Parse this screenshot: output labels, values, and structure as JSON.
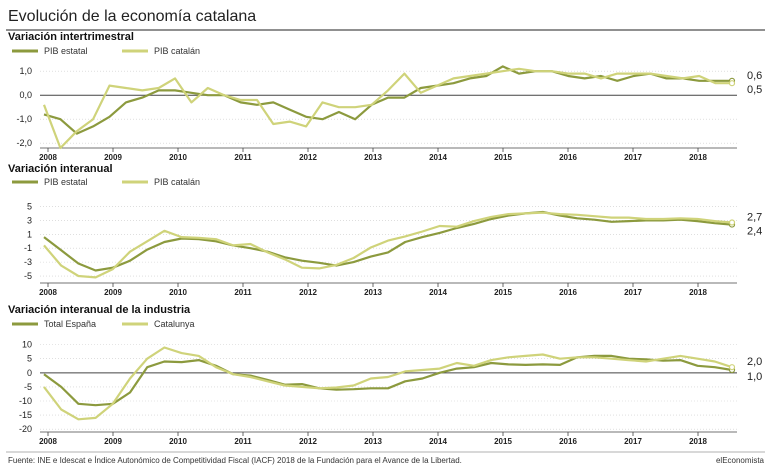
{
  "title": "Evolución de la economía catalana",
  "source": "Fuente: INE e Idescat e Índice Autonómico de Competitividad Fiscal (IACF) 2018 de la Fundación para el Avance de la Libertad.",
  "brand": "elEconomista",
  "colors": {
    "dark": "#8c9a3e",
    "light": "#cfd37a",
    "zero": "#444444",
    "grid": "#cccccc"
  },
  "chart_data": [
    {
      "type": "line",
      "subtitle": "Variación intertrimestral",
      "x_labels": [
        "2008",
        "2009",
        "2010",
        "2011",
        "2012",
        "2013",
        "2014",
        "2015",
        "2016",
        "2017",
        "2018"
      ],
      "ylim": [
        -2.2,
        1.3
      ],
      "y_ticks": [
        1.0,
        0.0,
        -1.0,
        -2.0
      ],
      "y_tick_labels": [
        "1,0",
        "0,0",
        "-1,0",
        "-2,0"
      ],
      "end_labels": [
        "0,6",
        "0,5"
      ],
      "series": [
        {
          "name": "PIB estatal",
          "color": "dark",
          "values": [
            -0.8,
            -1.0,
            -1.6,
            -1.3,
            -0.9,
            -0.3,
            -0.1,
            0.2,
            0.2,
            0.1,
            0.0,
            0.0,
            -0.3,
            -0.4,
            -0.3,
            -0.6,
            -0.9,
            -1.0,
            -0.7,
            -1.0,
            -0.4,
            -0.1,
            -0.1,
            0.3,
            0.4,
            0.5,
            0.7,
            0.8,
            1.2,
            0.9,
            1.0,
            1.0,
            0.8,
            0.7,
            0.8,
            0.6,
            0.8,
            0.9,
            0.7,
            0.7,
            0.6,
            0.6,
            0.6
          ]
        },
        {
          "name": "PIB catalán",
          "color": "light",
          "values": [
            -0.4,
            -2.2,
            -1.5,
            -1.0,
            0.4,
            0.3,
            0.2,
            0.3,
            0.7,
            -0.3,
            0.3,
            0.0,
            -0.2,
            -0.2,
            -1.2,
            -1.1,
            -1.3,
            -0.3,
            -0.5,
            -0.5,
            -0.4,
            0.2,
            0.9,
            0.1,
            0.4,
            0.7,
            0.8,
            0.9,
            1.0,
            1.1,
            1.0,
            1.0,
            0.9,
            0.9,
            0.7,
            0.9,
            0.9,
            0.9,
            0.8,
            0.7,
            0.8,
            0.5,
            0.5
          ]
        }
      ]
    },
    {
      "type": "line",
      "subtitle": "Variación interanual",
      "x_labels": [
        "2008",
        "2009",
        "2010",
        "2011",
        "2012",
        "2013",
        "2014",
        "2015",
        "2016",
        "2017",
        "2018"
      ],
      "ylim": [
        -6.0,
        5.5
      ],
      "y_ticks": [
        5,
        3,
        1,
        -1,
        -3,
        -5
      ],
      "y_tick_labels": [
        "5",
        "3",
        "1",
        "-1",
        "-3",
        "-5"
      ],
      "end_labels": [
        "2,7",
        "2,4"
      ],
      "series": [
        {
          "name": "PIB estatal",
          "color": "dark",
          "values": [
            0.6,
            -1.3,
            -3.2,
            -4.2,
            -3.8,
            -2.8,
            -1.2,
            -0.1,
            0.4,
            0.3,
            0.0,
            -0.6,
            -1.0,
            -1.5,
            -2.3,
            -2.8,
            -3.1,
            -3.5,
            -3.0,
            -2.2,
            -1.6,
            -0.1,
            0.6,
            1.2,
            1.9,
            2.5,
            3.2,
            3.7,
            4.0,
            4.2,
            3.7,
            3.3,
            3.1,
            2.8,
            2.9,
            3.0,
            3.0,
            3.1,
            2.9,
            2.6,
            2.4
          ]
        },
        {
          "name": "PIB catalán",
          "color": "light",
          "values": [
            -0.6,
            -3.5,
            -5.0,
            -5.2,
            -4.0,
            -1.5,
            0.0,
            1.5,
            0.6,
            0.5,
            0.3,
            -0.6,
            -0.4,
            -1.6,
            -2.6,
            -3.8,
            -3.9,
            -3.4,
            -2.4,
            -0.9,
            0.1,
            0.7,
            1.4,
            2.2,
            2.1,
            2.9,
            3.5,
            3.9,
            4.0,
            4.1,
            3.9,
            3.8,
            3.6,
            3.4,
            3.4,
            3.2,
            3.2,
            3.3,
            3.2,
            2.9,
            2.7
          ]
        }
      ]
    },
    {
      "type": "line",
      "subtitle": "Variación interanual de la industria",
      "x_labels": [
        "2008",
        "2009",
        "2010",
        "2011",
        "2012",
        "2013",
        "2014",
        "2015",
        "2016",
        "2017",
        "2018"
      ],
      "ylim": [
        -21,
        12
      ],
      "y_ticks": [
        10,
        5,
        0,
        -5,
        -10,
        -15,
        -20
      ],
      "y_tick_labels": [
        "10",
        "5",
        "0",
        "-5",
        "-10",
        "-15",
        "-20"
      ],
      "end_labels": [
        "2,0",
        "1,0"
      ],
      "series": [
        {
          "name": "Total España",
          "color": "dark",
          "values": [
            -0.5,
            -5.0,
            -11.0,
            -11.5,
            -11.0,
            -7.0,
            2.0,
            4.0,
            3.8,
            4.5,
            2.5,
            -0.5,
            -1.0,
            -2.5,
            -4.2,
            -4.0,
            -5.5,
            -6.0,
            -5.8,
            -5.5,
            -5.5,
            -3.0,
            -2.0,
            0.0,
            1.5,
            2.0,
            3.5,
            3.0,
            2.8,
            3.0,
            2.8,
            5.5,
            6.0,
            6.0,
            5.0,
            4.8,
            4.3,
            4.5,
            2.5,
            2.0,
            1.0
          ]
        },
        {
          "name": "Catalunya",
          "color": "light",
          "values": [
            -5.0,
            -13.0,
            -16.5,
            -16.0,
            -11.0,
            -2.0,
            5.0,
            9.0,
            7.0,
            6.0,
            2.0,
            -0.5,
            -1.5,
            -3.0,
            -4.5,
            -5.0,
            -5.5,
            -5.2,
            -4.5,
            -2.0,
            -1.5,
            0.5,
            1.0,
            1.5,
            3.5,
            2.5,
            4.5,
            5.5,
            6.0,
            6.5,
            5.0,
            5.5,
            5.5,
            5.0,
            4.5,
            4.0,
            5.0,
            6.0,
            5.0,
            4.0,
            2.0
          ]
        }
      ]
    }
  ]
}
